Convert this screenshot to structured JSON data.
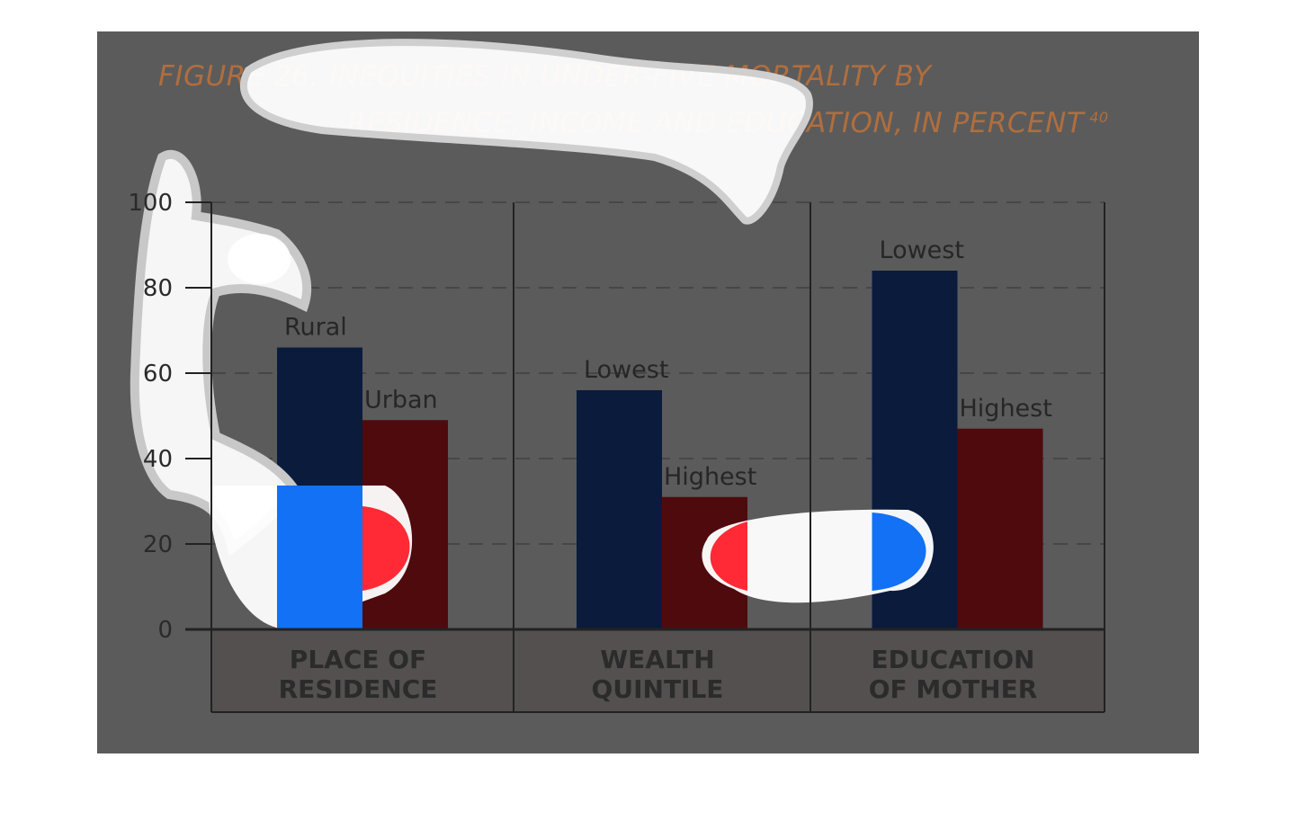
{
  "title": {
    "line1": "FIGURE 26: INEQUITIES IN UNDER-FIVE MORTALITY BY",
    "line2": "RESIDENCE, INCOME AND EDUCATION, IN PERCENT",
    "ref": "40"
  },
  "colors": {
    "panel": "#5b5b5b",
    "title": "#b06e3e",
    "bar_primary": "#0a1b3c",
    "bar_secondary": "#4f0a0e",
    "category_band": "#545050",
    "axis": "#222222",
    "grid": "#474747",
    "heat_blue": "#1271f4",
    "heat_red": "#ff2a35",
    "heat_white": "#ffffff"
  },
  "chart_data": {
    "type": "bar",
    "title": "FIGURE 26: INEQUITIES IN UNDER-FIVE MORTALITY BY RESIDENCE, INCOME AND EDUCATION, IN PERCENT",
    "ylim": [
      0,
      100
    ],
    "yticks": [
      0,
      20,
      40,
      60,
      80,
      100
    ],
    "grid": true,
    "groups": [
      {
        "category": [
          "PLACE OF",
          "RESIDENCE"
        ],
        "bars": [
          {
            "label": "Rural",
            "value": 66,
            "series": "primary"
          },
          {
            "label": "Urban",
            "value": 49,
            "series": "secondary"
          }
        ]
      },
      {
        "category": [
          "WEALTH",
          "QUINTILE"
        ],
        "bars": [
          {
            "label": "Lowest",
            "value": 56,
            "series": "primary"
          },
          {
            "label": "Highest",
            "value": 31,
            "series": "secondary"
          }
        ]
      },
      {
        "category": [
          "EDUCATION",
          "OF MOTHER"
        ],
        "bars": [
          {
            "label": "Lowest",
            "value": 84,
            "series": "primary"
          },
          {
            "label": "Highest",
            "value": 47,
            "series": "secondary"
          }
        ]
      }
    ]
  }
}
